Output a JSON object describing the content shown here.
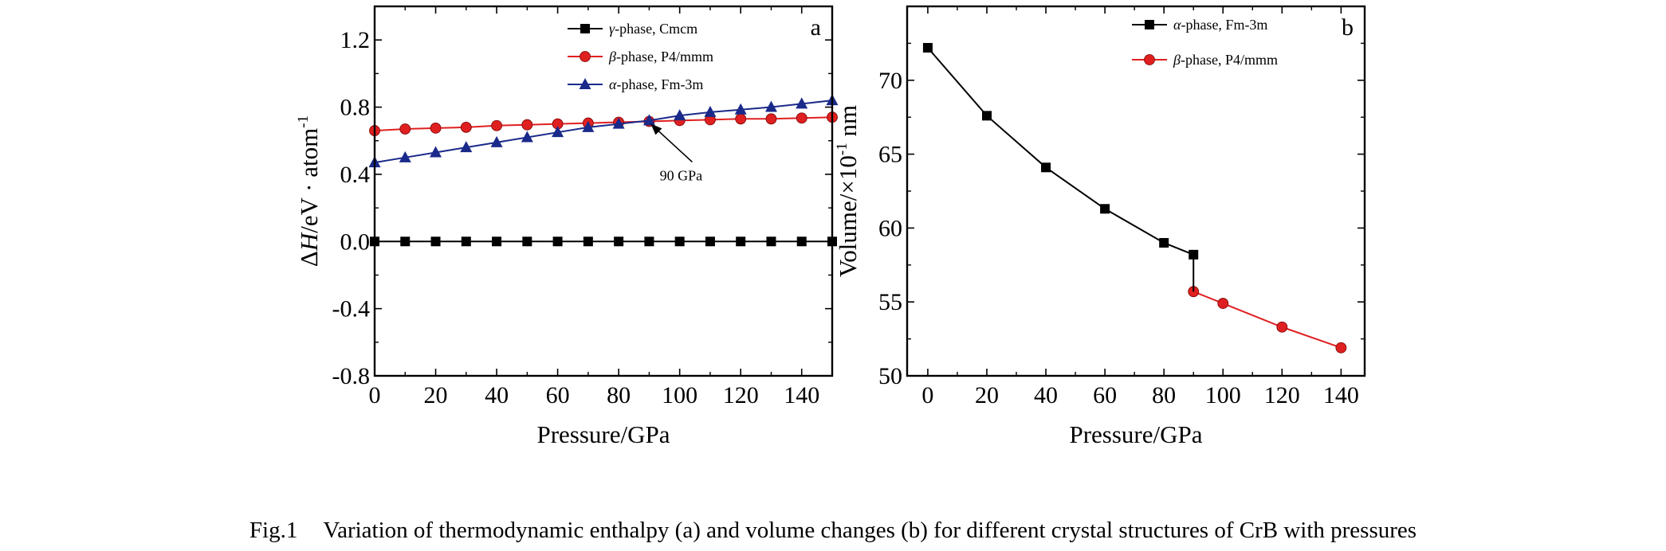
{
  "caption": {
    "number": "Fig.1",
    "text": "Variation of thermodynamic enthalpy (a) and volume changes (b) for different crystal structures of CrB with pressures"
  },
  "chart_data": [
    {
      "type": "line",
      "panel_label": "a",
      "xlabel": "Pressure/GPa",
      "ylabel_parts": [
        "Δ",
        "H",
        "/eV · atom",
        "-1"
      ],
      "xlim": [
        0,
        150
      ],
      "ylim": [
        -0.8,
        1.4
      ],
      "x_ticks": [
        0,
        20,
        40,
        60,
        80,
        100,
        120,
        140
      ],
      "y_ticks": [
        -0.8,
        -0.4,
        0.0,
        0.4,
        0.8,
        1.2
      ],
      "y_tick_labels": [
        "-0.8",
        "-0.4",
        "0.0",
        "0.4",
        "0.8",
        "1.2"
      ],
      "legend_position": "top-right",
      "annotation": {
        "text": "90 GPa",
        "x": 90,
        "y": 0.72
      },
      "series": [
        {
          "name_greek": "γ",
          "name_rest": "-phase, Cmcm",
          "color": "#000000",
          "marker": "square",
          "x": [
            0,
            10,
            20,
            30,
            40,
            50,
            60,
            70,
            80,
            90,
            100,
            110,
            120,
            130,
            140,
            150
          ],
          "y": [
            0,
            0,
            0,
            0,
            0,
            0,
            0,
            0,
            0,
            0,
            0,
            0,
            0,
            0,
            0,
            0
          ]
        },
        {
          "name_greek": "β",
          "name_rest": "-phase, P4/mmm",
          "color": "#e02020",
          "marker": "circle",
          "x": [
            0,
            10,
            20,
            30,
            40,
            50,
            60,
            70,
            80,
            90,
            100,
            110,
            120,
            130,
            140,
            150
          ],
          "y": [
            0.66,
            0.67,
            0.675,
            0.68,
            0.69,
            0.695,
            0.7,
            0.705,
            0.71,
            0.715,
            0.72,
            0.725,
            0.73,
            0.73,
            0.735,
            0.74
          ]
        },
        {
          "name_greek": "α",
          "name_rest": "-phase, Fm-3m",
          "color": "#1a2a8a",
          "marker": "triangle",
          "x": [
            0,
            10,
            20,
            30,
            40,
            50,
            60,
            70,
            80,
            90,
            100,
            110,
            120,
            130,
            140,
            150
          ],
          "y": [
            0.47,
            0.5,
            0.53,
            0.56,
            0.59,
            0.62,
            0.65,
            0.68,
            0.7,
            0.72,
            0.75,
            0.77,
            0.785,
            0.8,
            0.82,
            0.84
          ]
        }
      ]
    },
    {
      "type": "line",
      "panel_label": "b",
      "xlabel": "Pressure/GPa",
      "ylabel_parts": [
        "Volume/×10",
        "-1",
        " nm"
      ],
      "xlim": [
        -7,
        148
      ],
      "ylim": [
        50,
        75
      ],
      "x_ticks": [
        0,
        20,
        40,
        60,
        80,
        100,
        120,
        140
      ],
      "y_ticks": [
        50,
        55,
        60,
        65,
        70
      ],
      "y_tick_labels": [
        "50",
        "55",
        "60",
        "65",
        "70"
      ],
      "legend_position": "top-right",
      "series": [
        {
          "name_greek": "α",
          "name_rest": "-phase, Fm-3m",
          "color": "#000000",
          "marker": "square",
          "x": [
            0,
            20,
            40,
            60,
            80,
            90
          ],
          "y": [
            72.2,
            67.6,
            64.1,
            61.3,
            59.0,
            58.2
          ]
        },
        {
          "name_greek": "β",
          "name_rest": "-phase, P4/mmm",
          "color": "#e02020",
          "marker": "circle",
          "x": [
            90,
            100,
            120,
            140
          ],
          "y": [
            55.7,
            54.9,
            53.3,
            51.9
          ]
        }
      ],
      "transition_line": {
        "x": 90,
        "y_from": 58.2,
        "y_to": 55.7
      }
    }
  ]
}
